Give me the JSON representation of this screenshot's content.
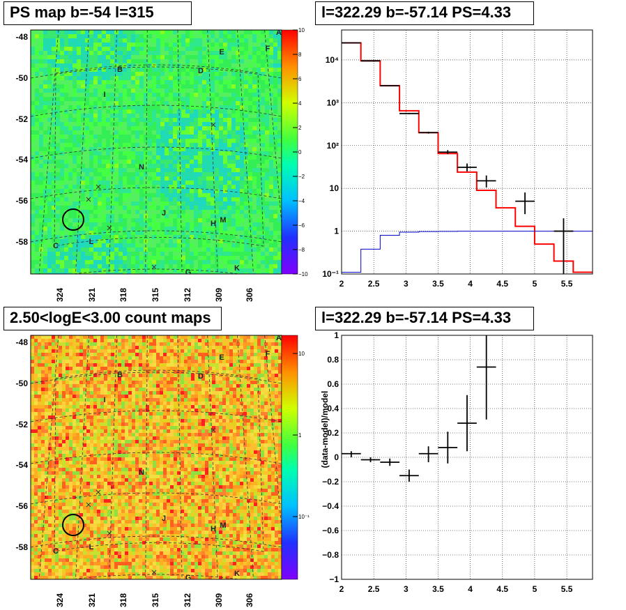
{
  "panels": {
    "tl_title": "PS map b=-54 l=315",
    "tr_title": "l=322.29 b=-57.14 PS=4.33",
    "bl_title": "2.50<logE<3.00 count maps",
    "br_title": "l=322.29 b=-57.14 PS=4.33"
  },
  "maps": {
    "y_ticks": [
      "-48",
      "-50",
      "-52",
      "-54",
      "-56",
      "-58"
    ],
    "x_ticks": [
      "324",
      "321",
      "318",
      "315",
      "312",
      "309",
      "306"
    ],
    "region_labels": [
      "A",
      "B",
      "C",
      "D",
      "E",
      "F",
      "G",
      "H",
      "I",
      "J",
      "K",
      "L",
      "M",
      "N"
    ],
    "ps_colorbar_ticks": [
      "10",
      "8",
      "6",
      "4",
      "2",
      "0",
      "−2",
      "−4",
      "−6",
      "−8",
      "−10"
    ],
    "count_colorbar_ticks": [
      "10",
      "1",
      "10⁻¹"
    ]
  },
  "chart_data": [
    {
      "type": "line",
      "title": "l=322.29 b=-57.14 PS=4.33",
      "yscale": "log",
      "xlim": [
        2.0,
        5.9
      ],
      "ylim": [
        0.1,
        50000
      ],
      "x_ticks": [
        "2",
        "2.5",
        "3",
        "3.5",
        "4",
        "4.5",
        "5",
        "5.5"
      ],
      "y_ticks": [
        "10⁻¹",
        "1",
        "10",
        "10²",
        "10³",
        "10⁴"
      ],
      "grid": true,
      "series": [
        {
          "name": "",
          "color": "#ff0000",
          "style": "step",
          "edges": [
            2.0,
            2.3,
            2.6,
            2.9,
            3.2,
            3.5,
            3.8,
            4.1,
            4.4,
            4.7,
            5.0,
            5.3,
            5.6,
            5.9
          ],
          "values": [
            25000,
            9500,
            2500,
            650,
            200,
            65,
            24,
            9,
            3.5,
            1.3,
            0.5,
            0.2,
            0.11
          ]
        },
        {
          "name": "",
          "color": "#0000cc",
          "style": "step",
          "edges": [
            2.0,
            2.3,
            2.6,
            2.9,
            3.2,
            3.5,
            3.8,
            4.1,
            4.4,
            4.7,
            5.0,
            5.3,
            5.6,
            5.9
          ],
          "values": [
            0.11,
            0.38,
            0.8,
            0.95,
            0.98,
            0.99,
            1.0,
            1.0,
            1.0,
            1.0,
            1.0,
            1.0,
            1.0
          ]
        },
        {
          "name": "",
          "color": "#000000",
          "style": "points",
          "x": [
            2.15,
            2.45,
            2.75,
            3.05,
            3.35,
            3.65,
            3.95,
            4.25,
            4.85,
            5.45
          ],
          "xerr": [
            0.15,
            0.15,
            0.15,
            0.15,
            0.15,
            0.15,
            0.15,
            0.15,
            0.15,
            0.15
          ],
          "y": [
            25000,
            9500,
            2500,
            560,
            200,
            70,
            31,
            15,
            5,
            1
          ],
          "ylow": [
            24800,
            9400,
            2450,
            540,
            190,
            63,
            25,
            10.5,
            2.5,
            0.1
          ],
          "yhigh": [
            25200,
            9600,
            2550,
            580,
            210,
            78,
            38,
            20,
            8,
            2
          ]
        }
      ]
    },
    {
      "type": "scatter",
      "title": "l=322.29 b=-57.14 PS=4.33",
      "ylabel": "(data-model)/model",
      "xlim": [
        2.0,
        5.9
      ],
      "ylim": [
        -1.0,
        1.0
      ],
      "x_ticks": [
        "2",
        "2.5",
        "3",
        "3.5",
        "4",
        "4.5",
        "5",
        "5.5"
      ],
      "y_ticks": [
        "1",
        "0.8",
        "0.6",
        "0.4",
        "0.2",
        "0",
        "−0.2",
        "−0.4",
        "−0.6",
        "−0.8",
        "−1"
      ],
      "grid": true,
      "series": [
        {
          "name": "",
          "color": "#000000",
          "x": [
            2.15,
            2.45,
            2.75,
            3.05,
            3.35,
            3.65,
            3.95,
            4.25
          ],
          "xerr": [
            0.15,
            0.15,
            0.15,
            0.15,
            0.15,
            0.15,
            0.15,
            0.15
          ],
          "y": [
            0.03,
            -0.02,
            -0.04,
            -0.15,
            0.03,
            0.08,
            0.28,
            0.74
          ],
          "ylow": [
            0.0,
            -0.04,
            -0.07,
            -0.2,
            -0.04,
            -0.05,
            0.05,
            0.31
          ],
          "yhigh": [
            0.05,
            0.0,
            -0.01,
            -0.1,
            0.09,
            0.21,
            0.51,
            1.0
          ]
        }
      ]
    }
  ]
}
